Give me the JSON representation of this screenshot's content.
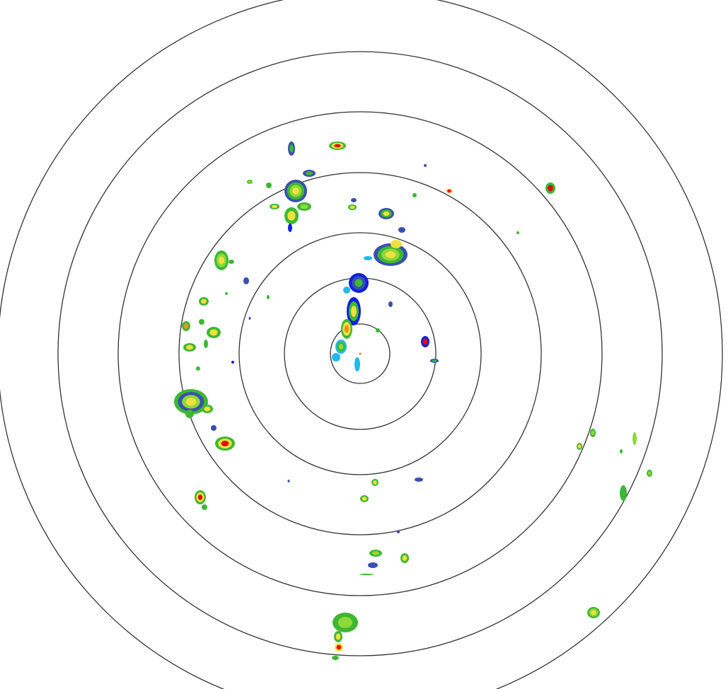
{
  "display": {
    "background_color": "#ffffff",
    "range_ring_color": "#333333",
    "range_ring_count": 7
  },
  "reflectivity_colors": {
    "weak_dark_blue": "#3a4fb0",
    "blue": "#1020e0",
    "light_blue": "#20b8f0",
    "green": "#3cb832",
    "light_green": "#8fd83a",
    "yellow": "#f0e040",
    "orange": "#f09020",
    "red": "#e01010"
  }
}
